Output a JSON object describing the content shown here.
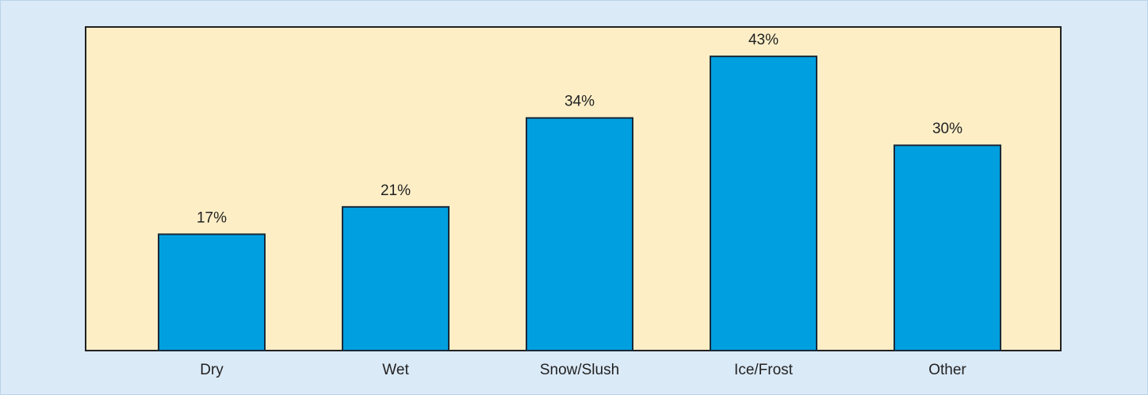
{
  "chart_data": {
    "type": "bar",
    "categories": [
      "Dry",
      "Wet",
      "Snow/Slush",
      "Ice/Frost",
      "Other"
    ],
    "values": [
      17,
      21,
      34,
      43,
      30
    ],
    "value_labels": [
      "17%",
      "21%",
      "34%",
      "43%",
      "30%"
    ],
    "color": "#00a0e0",
    "ylim": [
      0,
      47.3
    ]
  }
}
